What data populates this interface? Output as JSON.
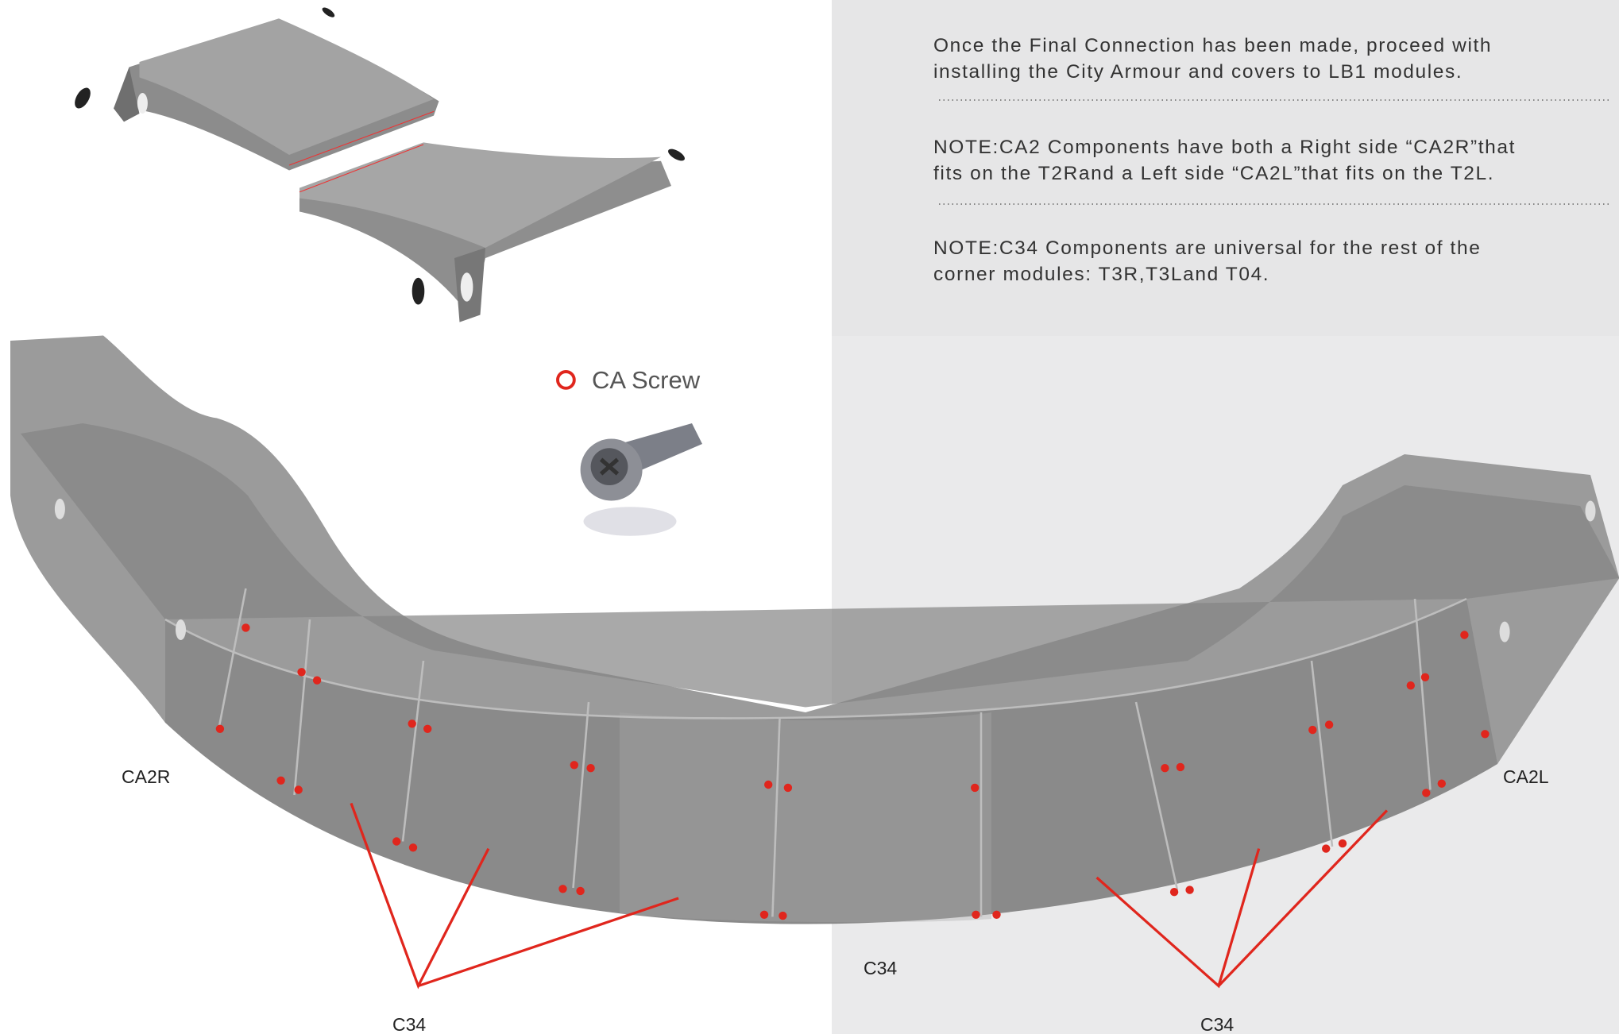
{
  "instructions": {
    "paragraph": [
      "Once the Final Connection has been made, proceed with",
      "installing the City Armour  and  covers  to  LB1  modules."
    ],
    "note_ca2": [
      "NOTE:CA2 Components  have both  a Right side “CA2R”that",
      "fits on  the  T2Rand  a Left side “CA2L”that  fits  on  the  T2L."
    ],
    "note_c34": [
      "NOTE:C34 Components  are universal for the rest of the",
      "corner modules: T3R,T3Land  T04."
    ]
  },
  "legend": {
    "screw": "CA Screw"
  },
  "labels": {
    "left_end": "CA2R",
    "right_end": "CA2L",
    "c34_center": "C34",
    "c34_left": "C34",
    "c34_right": "C34"
  }
}
